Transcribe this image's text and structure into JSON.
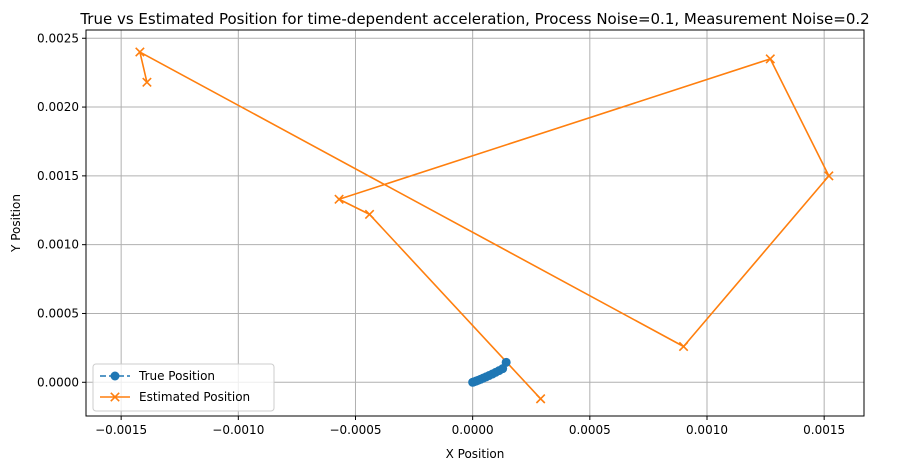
{
  "chart_data": {
    "type": "line",
    "title": "True vs Estimated Position for time-dependent acceleration, Process Noise=0.1, Measurement Noise=0.2",
    "xlabel": "X Position",
    "ylabel": "Y Position",
    "xlim": [
      -0.00165,
      0.00167
    ],
    "ylim": [
      -0.000245,
      0.00256
    ],
    "xticks": [
      -0.0015,
      -0.001,
      -0.0005,
      0.0,
      0.0005,
      0.001,
      0.0015
    ],
    "xtick_labels": [
      "−0.0015",
      "−0.0010",
      "−0.0005",
      "0.0000",
      "0.0005",
      "0.0010",
      "0.0015"
    ],
    "yticks": [
      0.0,
      0.0005,
      0.001,
      0.0015,
      0.002,
      0.0025
    ],
    "ytick_labels": [
      "0.0000",
      "0.0005",
      "0.0010",
      "0.0015",
      "0.0020",
      "0.0025"
    ],
    "grid": true,
    "legend_position": "lower-left",
    "series": [
      {
        "name": "True Position",
        "color": "#1f77b4",
        "marker": "circle",
        "line_style": "dashed",
        "x": [
          0.0,
          7e-06,
          1.5e-05,
          2.4e-05,
          3.4e-05,
          4.5e-05,
          5.7e-05,
          7e-05,
          8.4e-05,
          9.8e-05,
          0.000113,
          0.000128,
          0.000143
        ],
        "y": [
          0.0,
          4e-06,
          9e-06,
          1.5e-05,
          2.2e-05,
          3e-05,
          3.9e-05,
          4.9e-05,
          6e-05,
          7.2e-05,
          8.5e-05,
          9.9e-05,
          0.000145
        ]
      },
      {
        "name": "Estimated Position",
        "color": "#ff7f0e",
        "marker": "x",
        "line_style": "solid",
        "x": [
          -0.00139,
          -0.00142,
          0.0009,
          0.00152,
          0.00127,
          -0.00057,
          -0.00044,
          0.00029
        ],
        "y": [
          0.00218,
          0.0024,
          0.00026,
          0.0015,
          0.00235,
          0.00133,
          0.00122,
          -0.00012
        ]
      }
    ]
  }
}
